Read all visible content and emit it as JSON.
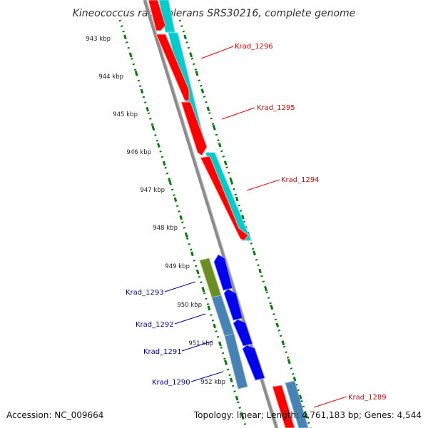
{
  "title": "Kineococcus radiotolerans SRS30216, complete genome",
  "footer": {
    "accession": "Accession: NC_009664",
    "summary": "Topology: linear; Length: 4,761,183 bp; Genes: 4,544"
  },
  "scale": {
    "unit": "kbp",
    "ticks": [
      "943 kbp",
      "944 kbp",
      "945 kbp",
      "946 kbp",
      "947 kbp",
      "948 kbp",
      "949 kbp",
      "950 kbp",
      "951 kbp",
      "952 kbp"
    ]
  },
  "colors": {
    "forward_gene": "#ff0000",
    "forward_cds": "#00cccc",
    "reverse_gene": "#0000ee",
    "reverse_cds": "#4682b4",
    "reverse_cds_alt": "#6b8e23",
    "backbone": "#8c8c8c",
    "scale_dots": "#008000",
    "forward_label": "#dd0000",
    "reverse_label": "#0000aa"
  },
  "genes": [
    {
      "name": "Krad_1296",
      "strand": "forward"
    },
    {
      "name": "Krad_1295",
      "strand": "forward"
    },
    {
      "name": "Krad_1294",
      "strand": "forward"
    },
    {
      "name": "Krad_1293",
      "strand": "reverse"
    },
    {
      "name": "Krad_1292",
      "strand": "reverse"
    },
    {
      "name": "Krad_1291",
      "strand": "reverse"
    },
    {
      "name": "Krad_1290",
      "strand": "reverse"
    },
    {
      "name": "Krad_1289",
      "strand": "forward"
    }
  ]
}
